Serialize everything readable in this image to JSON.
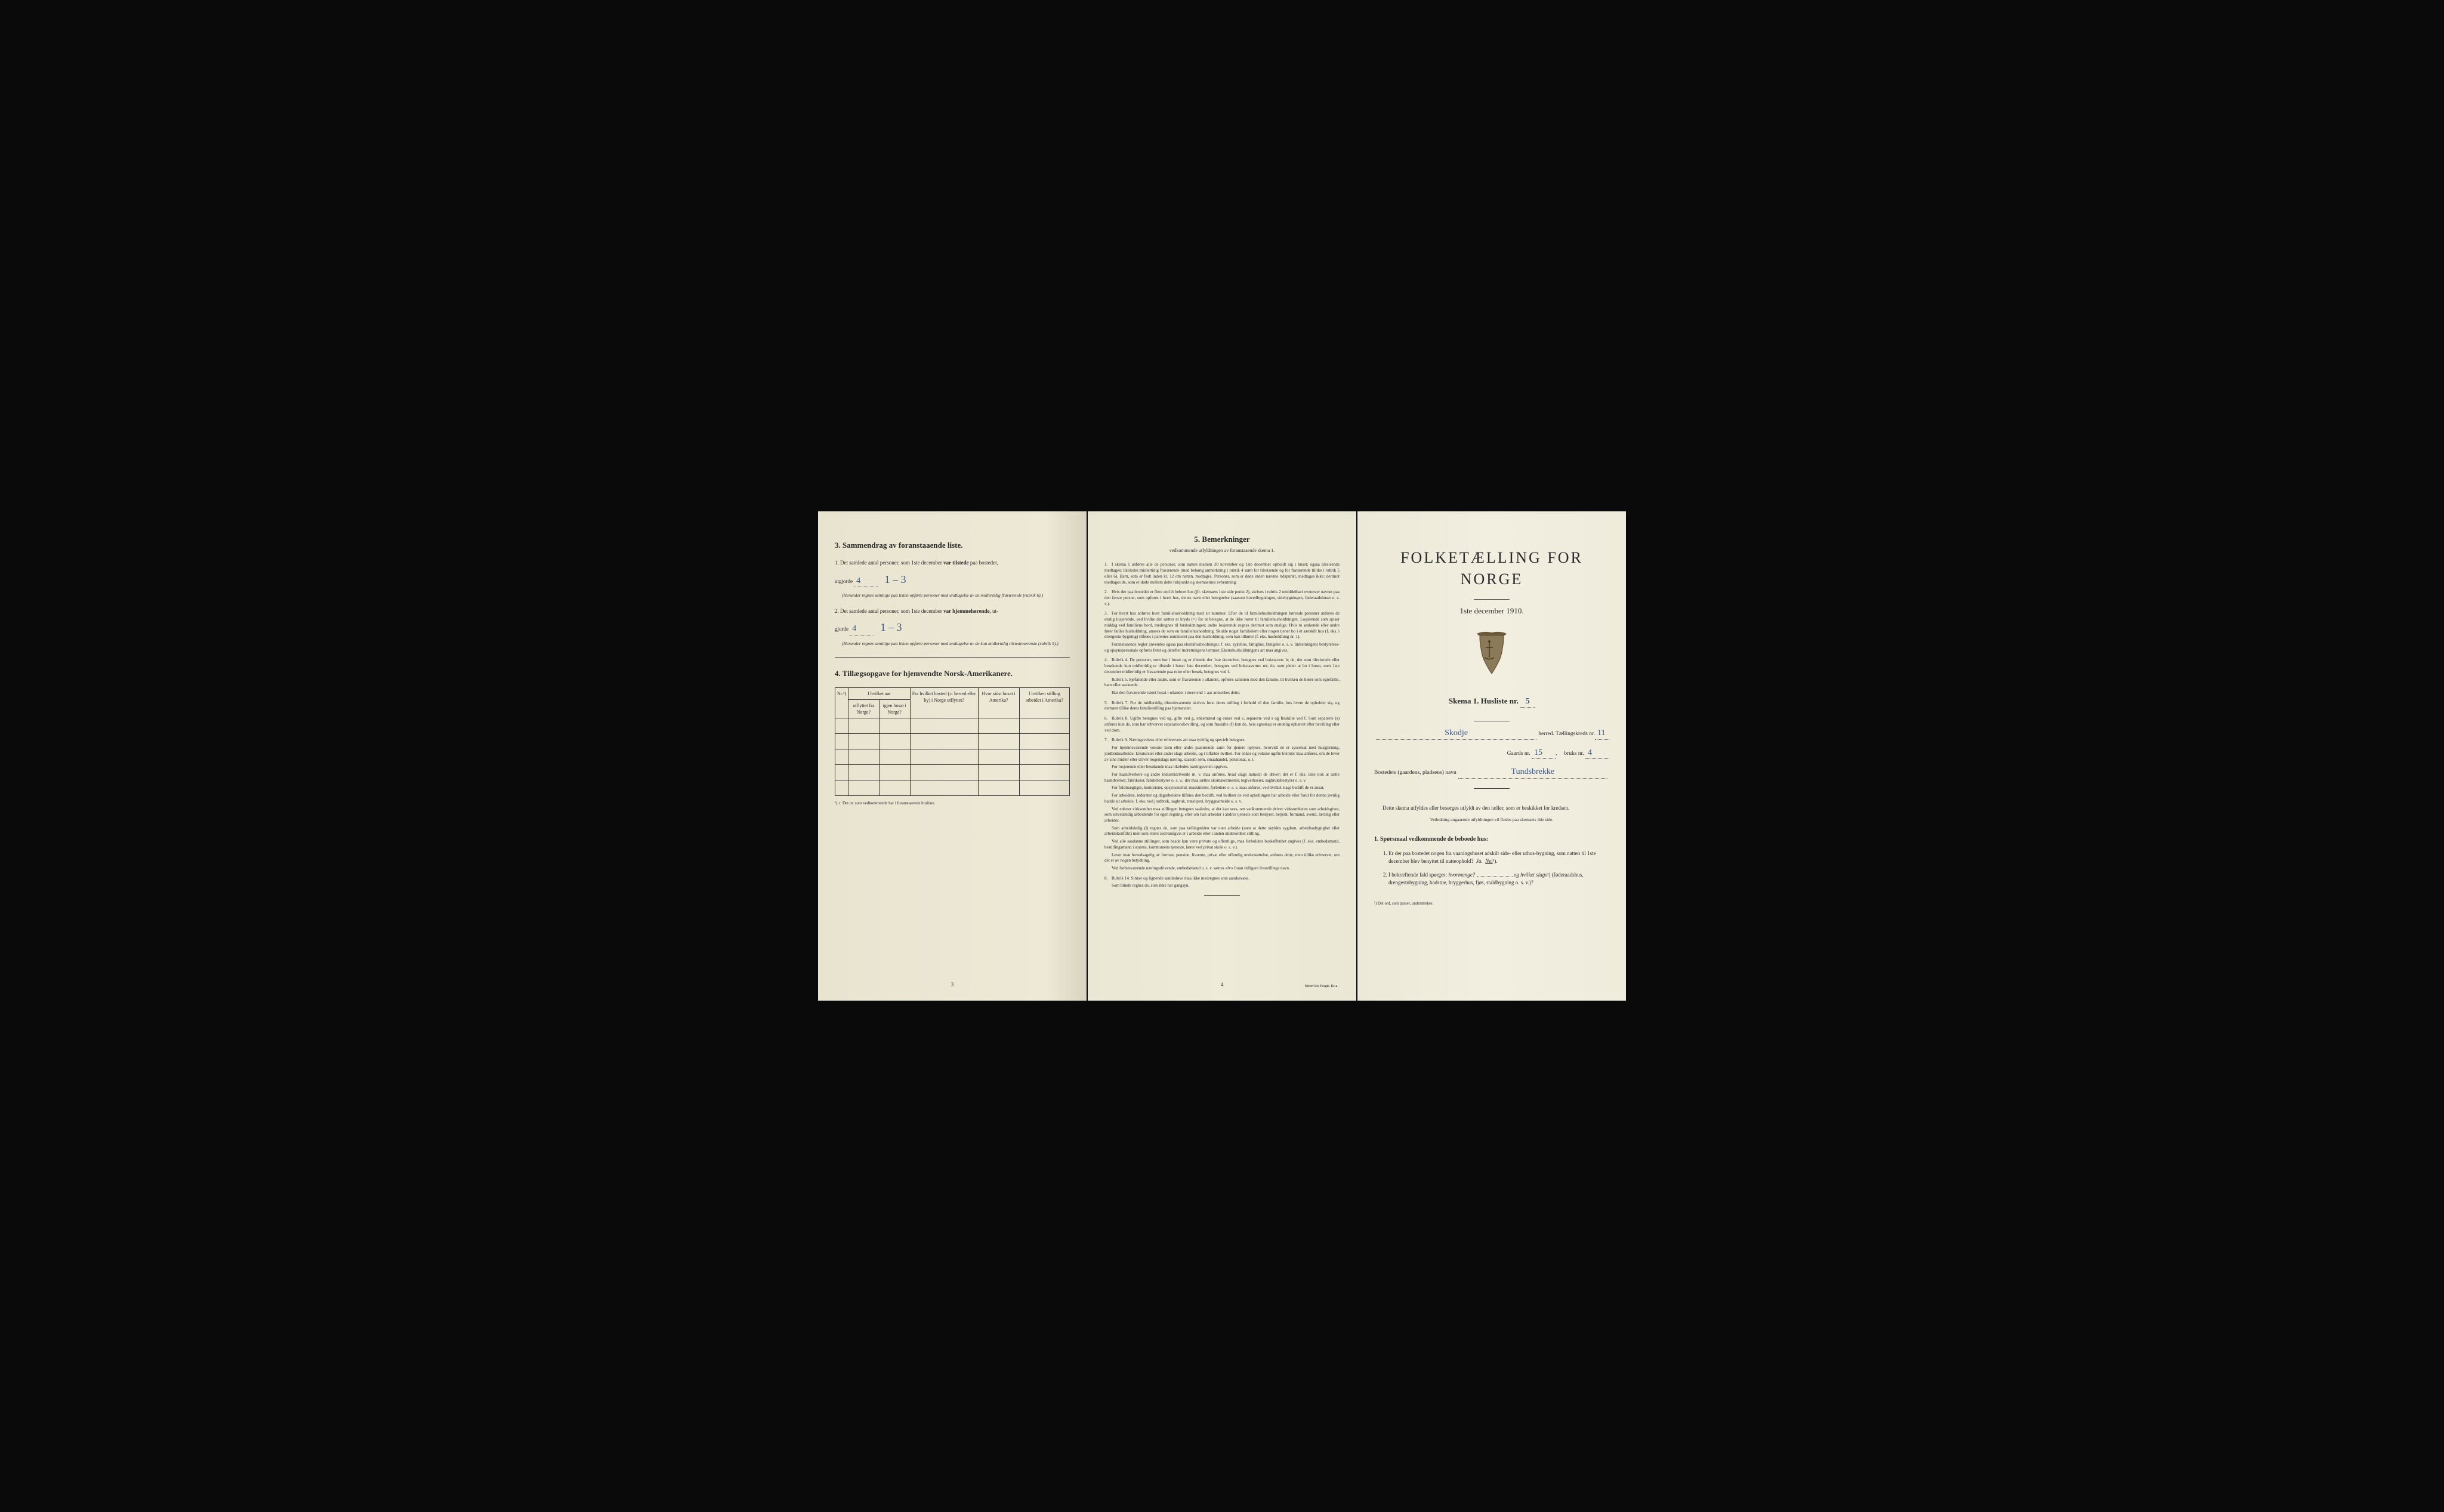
{
  "left": {
    "section3_title": "3.  Sammendrag av foranstaaende liste.",
    "item1_prefix": "1.  Det samlede antal personer, som 1ste december",
    "item1_bold": "var tilstede",
    "item1_suffix": "paa bostedet,",
    "item1_line2_prefix": "utgjorde",
    "item1_value": "4",
    "item1_handwritten": "1 – 3",
    "item1_note": "(Herunder regnes samtlige paa listen opførte personer med undtagelse av de midlertidig fraværende (rubrik 6).)",
    "item2_prefix": "2.  Det samlede antal personer, som 1ste december",
    "item2_bold": "var hjemmehørende",
    "item2_suffix": ", ut-",
    "item2_line2_prefix": "gjorde",
    "item2_value": "4",
    "item2_handwritten": "1 – 3",
    "item2_note": "(Herunder regnes samtlige paa listen opførte personer med undtagelse av de kun midlertidig tilstedeværende (rubrik 5).)",
    "section4_title": "4.  Tillægsopgave for hjemvendte Norsk-Amerikanere.",
    "table_headers": {
      "c1": "Nr.¹)",
      "c2a": "I hvilket aar",
      "c2b": "utflyttet fra Norge?",
      "c2c": "igjen bosat i Norge?",
      "c3": "Fra hvilket bosted (ɔ: herred eller by) i Norge utflyttet?",
      "c4": "Hvor sidst bosat i Amerika?",
      "c5": "I hvilken stilling arbeidet i Amerika?"
    },
    "table_footnote": "¹) ɔ: Det nr. som vedkommende har i foranstaaende husliste.",
    "page_num": "3"
  },
  "middle": {
    "title": "5.  Bemerkninger",
    "subtitle": "vedkommende utfyldningen av foranstaaende skema 1.",
    "items": [
      {
        "n": "1.",
        "text": "I skema 1 anføres alle de personer, som natten mellem 30 november og 1ste december opholdt sig i huset; ogsaa tilreisende medtages; likeledes midlertidig fraværende (med behørig anmerkning i rubrik 4 samt for tilreisende og for fraværende tillike i rubrik 5 eller 6). Barn, som er født inden kl. 12 om natten, medtages. Personer, som er døde inden nævnte tidspunkt, medtages ikke; derimot medtages de, som er døde mellem dette tidspunkt og skemaernes avhentning."
      },
      {
        "n": "2.",
        "text": "Hvis der paa bostedet er flere end ét beboet hus (jfr. skemaets 1ste side punkt 2), skrives i rubrik 2 umiddelbart ovenover navnet paa den første person, som opføres i hvert hus, dettes navn eller betegnelse (saasom hovedbygningen, sidebygningen, føderaadshuset o. s. v.)."
      },
      {
        "n": "3.",
        "text": "For hvert hus anføres hver familiehusholdning med sit nummer. Efter de til familiehusholdningen hørende personer anføres de enslig losjerende, ved hvilke der sættes et kryds (×) for at betegne, at de ikke hører til familiehusholdningen. Losjerende som spiser middag ved familiens bord, medregnes til husholdningen; andre losjerende regnes derimot som enslige. Hvis to søskende eller andre fører fælles husholdning, ansees de som en familiehusholdning. Skulde noget familielem eller nogen tjener bo i et særskilt hus (f. eks. i drengestu-bygning) tilføies i parentes nummeret paa den husholdning, som han tilhører (f. eks. husholdning nr. 1).",
        "subs": [
          "Foranstaaende regler anvendes ogsaa paa ekstrahusholdninger, f. eks. sykehus, fattighus, fængsler o. s. v. Indretningens bestyrelses- og opsynspersonale opføres først og derefter indretningens lemmer. Ekstrahusholdningens art maa angives."
        ]
      },
      {
        "n": "4.",
        "text": "Rubrik 4. De personer, som bor i huset og er tilstede der 1ste december, betegnes ved bokstaven: b; de, der som tilreisende eller besøkende kun midlertidig er tilstede i huset 1ste december, betegnes ved bokstaverne: mt; de, som pleier at bo i huset, men 1ste december midlertidig er fraværende paa reise eller besøk, betegnes ved f.",
        "subs": [
          "Rubrik 5. Sjøfarende eller andre, som er fraværende i utlandet, opføres sammen med den familie, til hvilken de hører som egtefælle, barn eller søskende.",
          "Har den fraværende været bosat i utlandet i mere end 1 aar anmerkes dette."
        ]
      },
      {
        "n": "5.",
        "text": "Rubrik 7. For de midlertidig tilstedeværende skrives først deres stilling i forhold til den familie, hos hvem de opholder sig, og dernæst tillike deres familiestilling paa hjemstedet."
      },
      {
        "n": "6.",
        "text": "Rubrik 8. Ugifte betegnes ved ug, gifte ved g, enkemænd og enker ved e, separerte ved s og fraskilte ved f. Som separerte (s) anføres kun de, som har erhvervet separationsbevilling, og som fraskilte (f) kun de, hvis egteskap er endelig ophævet efter bevilling eller ved dom."
      },
      {
        "n": "7.",
        "text": "Rubrik 9. Næringsveiens eller erhvervets art maa tydelig og specielt betegnes.",
        "subs": [
          "For hjemmeværende voksne barn eller andre paarørende samt for tjenere oplyses, hvorvidt de er sysselsat med husgjerning, jordbruksarbeide, kreaturstel eller andet slags arbeide, og i tilfælde hvilket. For enker og voksne ugifte kvinder maa anføres, om de lever av sine midler eller driver nogenslags næring, saasom søm, smaahandel, pensionat, o. l.",
          "For losjerende eller besøkende maa likeledes næringsveien opgives.",
          "For haandverkere og andre industridrivende m. v. maa anføres, hvad slags industri de driver; det er f. eks. ikke nok at sætte haandverker, fabrikeier, fabrikbestyrer o. s. v.; der maa sættes skomakermester, teglverkseier, sagbruksbestyrer o. s. v.",
          "For fuldmægtiger, kontorister, opsynsmænd, maskinister, fyrbøtere o. s. v. maa anføres, ved hvilket slags bedrift de er ansat.",
          "For arbeidere, inderster og dagarbeidere tilføies den bedrift, ved hvilken de ved optællingen har arbeide eller forut for denne jevnlig hadde sit arbeide, f. eks. ved jordbruk, sagbruk, træsliperi, bryggearbeide o. s. v.",
          "Ved enhver virksomhet maa stillingen betegnes saaledes, at det kan sees, om vedkommende driver virksomheten som arbeidsgiver, som selvstændig arbeidende for egen regning, eller om han arbeider i andres tjeneste som bestyrer, betjent, formand, svend, lærling eller arbeider.",
          "Som arbeidsledig (l) regnes de, som paa tællingstiden var uten arbeide (uten at dette skyldes sygdom, arbeidsudygtighet eller arbeidskonflikt) men som ellers sedvanligvis er i arbeide eller i anden underordnet stilling.",
          "Ved alle saadanne stillinger, som baade kan være private og offentlige, maa forholdets beskaffenhet angives (f. eks. embedsmand, bestillingsmand i statens, kommunens tjeneste, lærer ved privat skole o. s. v.).",
          "Lever man hovedsagelig av formue, pension, livrente, privat eller offentlig understøttelse, anføres dette, men tillike erhvervet, om det er av nogen betydning.",
          "Ved forhenværende næringsdrivende, embedsmænd o. s. v. sættes «fv» foran tidligere livsstillings navn."
        ]
      },
      {
        "n": "8.",
        "text": "Rubrik 14. Sinker og lignende aandssløve maa ikke medregnes som aandssvake.",
        "subs": [
          "Som blinde regnes de, som ikke har gangsyn."
        ]
      }
    ],
    "page_num": "4",
    "printer": "Steen'ske Bogtr. Kr.a."
  },
  "right": {
    "main_title": "FOLKETÆLLING FOR NORGE",
    "date_line": "1ste december 1910.",
    "schema_label": "Skema 1.  Husliste nr.",
    "husliste_nr": "5",
    "herred_value": "Skodje",
    "herred_label": "herred.  Tællingskreds nr.",
    "kreds_nr": "11",
    "gaards_label": "Gaards nr.",
    "gaards_nr": "15",
    "bruks_label": "bruks nr.",
    "bruks_nr": "4",
    "bosted_label": "Bostedets (gaardens, pladsens) navn",
    "bosted_value": "Tundsbrekke",
    "intro": "Dette skema utfyldes eller besørges utfyldt av den tæller, som er beskikket for kredsen.",
    "intro_sub": "Veiledning angaaende utfyldningen vil findes paa skemaets 4de side.",
    "q_heading": "1. Spørsmaal vedkommende de beboede hus:",
    "q1": "Er der paa bostedet nogen fra vaaningshuset adskilt side- eller uthus-bygning, som natten til 1ste december blev benyttet til natteophold?",
    "q1_ja": "Ja.",
    "q1_nei": "Nei",
    "q1_super": "¹).",
    "q2_a": "I bekræftende fald spørges: ",
    "q2_b": "hvormange?",
    "q2_c": "og hvilket slags",
    "q2_super": "¹)",
    "q2_d": "(føderaadshus, drengestubygning, badstue, bryggerhus, fjøs, staldbygning o. s. v.)?",
    "footnote": "¹) Det ord, som passer, understrekes."
  },
  "colors": {
    "paper_left": "#e8e4d0",
    "paper_middle": "#efebd9",
    "paper_right": "#f2eee0",
    "ink": "#2a2a2a",
    "handwriting": "#3a5a8a",
    "background": "#0a0a0a"
  }
}
